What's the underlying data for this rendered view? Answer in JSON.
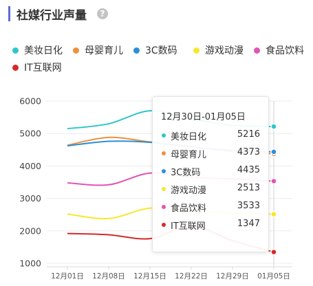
{
  "header": {
    "title": "社媒行业声量",
    "help_icon": "question-circle-icon",
    "help_glyph": "?"
  },
  "colors": {
    "accent": "#5b6bd6",
    "series": [
      "#2ec7c9",
      "#f0903a",
      "#2a8fd8",
      "#f9e72b",
      "#e055b3",
      "#d42a28"
    ]
  },
  "chart_data": {
    "type": "line",
    "x": [
      "12月01日",
      "12月08日",
      "12月15日",
      "12月22日",
      "12月29日",
      "01月05日"
    ],
    "ylim": [
      1000,
      6000
    ],
    "yticks": [
      1000,
      2000,
      3000,
      4000,
      5000,
      6000
    ],
    "grid": true,
    "legend": "top",
    "series": [
      {
        "name": "美妆日化",
        "values": [
          5150,
          5300,
          5700,
          5450,
          5250,
          5216
        ]
      },
      {
        "name": "母婴育儿",
        "values": [
          4640,
          4880,
          4740,
          4600,
          4450,
          4373
        ]
      },
      {
        "name": "3C数码",
        "values": [
          4620,
          4760,
          4730,
          4580,
          4480,
          4435
        ]
      },
      {
        "name": "游戏动漫",
        "values": [
          2520,
          2380,
          2700,
          2600,
          2550,
          2513
        ]
      },
      {
        "name": "食品饮料",
        "values": [
          3480,
          3420,
          3780,
          3650,
          3600,
          3533
        ]
      },
      {
        "name": "IT互联网",
        "values": [
          1920,
          1880,
          1760,
          2150,
          1700,
          1347
        ]
      }
    ]
  },
  "tooltip": {
    "title": "12月30日-01月05日",
    "rows": [
      {
        "name": "美妆日化",
        "value": "5216"
      },
      {
        "name": "母婴育儿",
        "value": "4373"
      },
      {
        "name": "3C数码",
        "value": "4435"
      },
      {
        "name": "游戏动漫",
        "value": "2513"
      },
      {
        "name": "食品饮料",
        "value": "3533"
      },
      {
        "name": "IT互联网",
        "value": "1347"
      }
    ]
  }
}
